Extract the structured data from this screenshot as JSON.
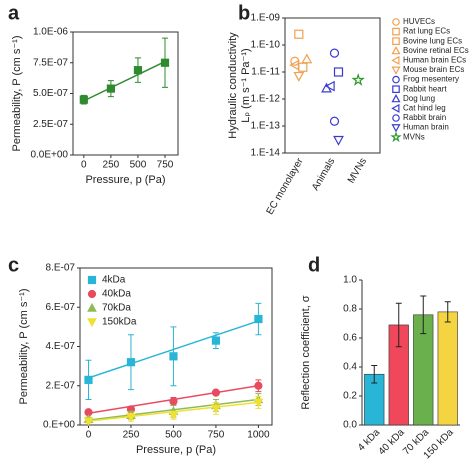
{
  "chart_data": [
    {
      "type": "line",
      "panel_label": "a",
      "xlabel": "Pressure, p (Pa)",
      "ylabel": [
        "Permeability, P (cm s⁻¹)"
      ],
      "x": [
        0,
        250,
        500,
        750
      ],
      "values": [
        4.5e-07,
        5.4e-07,
        6.9e-07,
        7.5e-07
      ],
      "errors": [
        3.5e-08,
        6.5e-08,
        1e-07,
        2e-07
      ],
      "color": "#2e8b2e",
      "marker": "square",
      "fit": {
        "x": [
          0,
          750
        ],
        "values": [
          4.4e-07,
          7.6e-07
        ]
      },
      "xlim": [
        -100,
        870
      ],
      "xticks": [
        0,
        250,
        500,
        750
      ],
      "ylim": [
        0,
        1e-06
      ],
      "yticks": [
        {
          "value": 0,
          "label": "0.0E+00"
        },
        {
          "value": 2.5e-07,
          "label": "2.5E-07"
        },
        {
          "value": 5e-07,
          "label": "5.0E-07"
        },
        {
          "value": 7.5e-07,
          "label": "7.5E-07"
        },
        {
          "value": 1e-06,
          "label": "1.0E-06"
        }
      ]
    },
    {
      "type": "scatter",
      "panel_label": "b",
      "ylabel": [
        "Hydraulic conductivity",
        "Lₚ (m s⁻¹ Pa⁻¹)"
      ],
      "ylog": true,
      "filled": false,
      "categories": [
        "EC monolayer",
        "Animals",
        "MVNs"
      ],
      "ylim": [
        1e-14,
        1e-09
      ],
      "yticks": [
        {
          "value": 1e-14,
          "label": "1.E-14"
        },
        {
          "value": 1e-13,
          "label": "1.E-13"
        },
        {
          "value": 1e-12,
          "label": "1.E-12"
        },
        {
          "value": 1e-11,
          "label": "1.E-11"
        },
        {
          "value": 1e-10,
          "label": "1.E-10"
        },
        {
          "value": 1e-09,
          "label": "1.E-09"
        }
      ],
      "series": [
        {
          "name": "HUVECs",
          "color": "#f0a050",
          "marker": "circle",
          "values": [
            2.5e-11,
            null,
            null
          ]
        },
        {
          "name": "Rat lung ECs",
          "color": "#f0a050",
          "marker": "square",
          "values": [
            2.5e-10,
            null,
            null
          ]
        },
        {
          "name": "Bovine lung ECs",
          "color": "#f0a050",
          "marker": "square",
          "values": [
            1.5e-11,
            null,
            null
          ]
        },
        {
          "name": "Bovine retinal ECs",
          "color": "#f0a050",
          "marker": "triangle-up",
          "values": [
            3e-11,
            null,
            null
          ]
        },
        {
          "name": "Human brain ECs",
          "color": "#f0a050",
          "marker": "triangle-left",
          "values": [
            1.8e-11,
            null,
            null
          ]
        },
        {
          "name": "Mouse brain ECs",
          "color": "#f0a050",
          "marker": "triangle-down",
          "values": [
            7e-12,
            null,
            null
          ]
        },
        {
          "name": "Frog mesentery",
          "color": "#3b3bd0",
          "marker": "circle",
          "values": [
            null,
            5e-11,
            null
          ]
        },
        {
          "name": "Rabbit heart",
          "color": "#3b3bd0",
          "marker": "square",
          "values": [
            null,
            1e-11,
            null
          ]
        },
        {
          "name": "Dog lung",
          "color": "#3b3bd0",
          "marker": "triangle-up",
          "values": [
            null,
            2.5e-12,
            null
          ]
        },
        {
          "name": "Cat hind leg",
          "color": "#3b3bd0",
          "marker": "triangle-left",
          "values": [
            null,
            3e-12,
            null
          ]
        },
        {
          "name": "Rabbit brain",
          "color": "#3b3bd0",
          "marker": "circle",
          "values": [
            null,
            1.5e-13,
            null
          ]
        },
        {
          "name": "Human brain",
          "color": "#3b3bd0",
          "marker": "triangle-down",
          "values": [
            null,
            3e-14,
            null
          ]
        },
        {
          "name": "MVNs",
          "color": "#2a9a2a",
          "marker": "star",
          "values": [
            null,
            null,
            5e-12
          ]
        }
      ]
    },
    {
      "type": "line",
      "panel_label": "c",
      "xlabel": "Pressure, p (Pa)",
      "ylabel": [
        "Permeability, P (cm s⁻¹)"
      ],
      "x": [
        0,
        250,
        500,
        750,
        1000
      ],
      "xlim": [
        -50,
        1080
      ],
      "xticks": [
        0,
        250,
        500,
        750,
        1000
      ],
      "ylim": [
        0,
        8e-07
      ],
      "yticks": [
        {
          "value": 0,
          "label": "0.E+00"
        },
        {
          "value": 2e-07,
          "label": "2.E-07"
        },
        {
          "value": 4e-07,
          "label": "4.E-07"
        },
        {
          "value": 6e-07,
          "label": "6.E-07"
        },
        {
          "value": 8e-07,
          "label": "8.E-07"
        }
      ],
      "series": [
        {
          "name": "4kDa",
          "color": "#29b6d6",
          "marker": "square",
          "values": [
            2.3e-07,
            3.2e-07,
            3.5e-07,
            4.3e-07,
            5.4e-07
          ],
          "errors": [
            1e-07,
            1.4e-07,
            1.5e-07,
            4e-08,
            8e-08
          ],
          "fit": {
            "x": [
              0,
              1000
            ],
            "values": [
              2.4e-07,
              5.3e-07
            ]
          }
        },
        {
          "name": "40kDa",
          "color": "#e84a5f",
          "marker": "circle",
          "values": [
            6.5e-08,
            8e-08,
            1.2e-07,
            1.65e-07,
            2e-07
          ],
          "errors": [
            1e-08,
            1e-08,
            2e-08,
            1e-08,
            3e-08
          ],
          "fit": {
            "x": [
              0,
              1000
            ],
            "values": [
              6e-08,
              2e-07
            ]
          }
        },
        {
          "name": "70kDa",
          "color": "#8dbb5a",
          "marker": "triangle-up",
          "values": [
            3e-08,
            5e-08,
            7e-08,
            1e-07,
            1.3e-07
          ],
          "errors": [
            1e-08,
            2e-08,
            3e-08,
            3e-08,
            3e-08
          ],
          "fit": {
            "x": [
              0,
              1000
            ],
            "values": [
              2.5e-08,
              1.3e-07
            ]
          }
        },
        {
          "name": "150kDa",
          "color": "#f0e030",
          "marker": "triangle-down",
          "values": [
            2e-08,
            4e-08,
            5e-08,
            8.5e-08,
            1.15e-07
          ],
          "errors": [
            1e-08,
            2e-08,
            2e-08,
            3e-08,
            3e-08
          ],
          "fit": {
            "x": [
              0,
              1000
            ],
            "values": [
              2e-08,
              1.15e-07
            ]
          }
        }
      ]
    },
    {
      "type": "bar",
      "panel_label": "d",
      "ylabel": [
        "Reflection coefficient, σ"
      ],
      "categories": [
        "4 kDa",
        "40 kDa",
        "70 kDa",
        "150 kDa"
      ],
      "values": [
        0.35,
        0.69,
        0.76,
        0.78
      ],
      "errors": [
        0.06,
        0.15,
        0.13,
        0.07
      ],
      "colors": [
        "#29b6d6",
        "#f0485a",
        "#6ab04c",
        "#f5d442"
      ],
      "ylim": [
        0,
        1
      ],
      "yticks": [
        {
          "value": 0,
          "label": "0.0"
        },
        0.2,
        0.4,
        0.6,
        0.8,
        {
          "value": 1,
          "label": "1.0"
        }
      ]
    }
  ]
}
